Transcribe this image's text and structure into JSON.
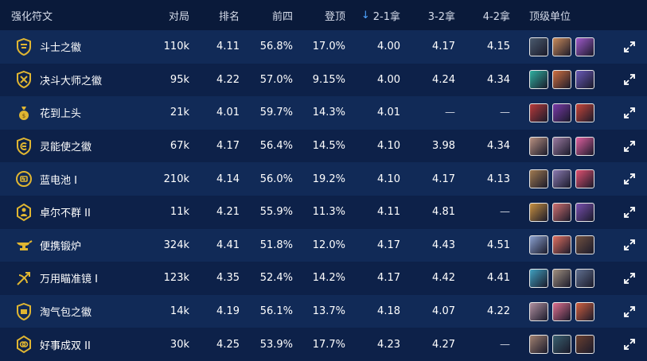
{
  "header": {
    "name": "强化符文",
    "games": "对局",
    "rank": "排名",
    "top4": "前四",
    "win": "登顶",
    "s21": "2-1拿",
    "s32": "3-2拿",
    "s42": "4-2拿",
    "units": "顶级单位"
  },
  "colors": {
    "background": "#0b1d3f",
    "row_odd": "#112a57",
    "row_even": "#0d2149",
    "gold_icon": "#e0b632",
    "sort_arrow": "#4da3ff"
  },
  "rows": [
    {
      "name": "斗士之徽",
      "icon": "shield-emblem-icon",
      "games": "110k",
      "rank": "4.11",
      "top4": "56.8%",
      "win": "17.0%",
      "s21": "4.00",
      "s32": "4.17",
      "s42": "4.15",
      "units": [
        "#4a5a6e",
        "#c98a5a",
        "#a05acb"
      ]
    },
    {
      "name": "决斗大师之徽",
      "icon": "crossed-swords-emblem-icon",
      "games": "95k",
      "rank": "4.22",
      "top4": "57.0%",
      "win": "9.15%",
      "s21": "4.00",
      "s32": "4.24",
      "s42": "4.34",
      "units": [
        "#2fb0a0",
        "#d07040",
        "#6a5ab8"
      ]
    },
    {
      "name": "花到上头",
      "icon": "money-bag-icon",
      "games": "21k",
      "rank": "4.01",
      "top4": "59.7%",
      "win": "14.3%",
      "s21": "4.01",
      "s32": "—",
      "s42": "—",
      "units": [
        "#b83a3a",
        "#7a3aa8",
        "#c8463a"
      ]
    },
    {
      "name": "灵能使之徽",
      "icon": "psionic-emblem-icon",
      "games": "67k",
      "rank": "4.17",
      "top4": "56.4%",
      "win": "14.5%",
      "s21": "4.10",
      "s32": "3.98",
      "s42": "4.34",
      "units": [
        "#b89080",
        "#9a7aa0",
        "#e060a0"
      ]
    },
    {
      "name": "蓝电池 I",
      "icon": "battery-icon",
      "games": "210k",
      "rank": "4.14",
      "top4": "56.0%",
      "win": "19.2%",
      "s21": "4.10",
      "s32": "4.17",
      "s42": "4.13",
      "units": [
        "#a07a50",
        "#8a7ab0",
        "#e05070"
      ]
    },
    {
      "name": "卓尔不群 II",
      "icon": "figure-badge-icon",
      "games": "11k",
      "rank": "4.21",
      "top4": "55.9%",
      "win": "11.3%",
      "s21": "4.11",
      "s32": "4.81",
      "s42": "—",
      "units": [
        "#c89040",
        "#d07070",
        "#7a50b0"
      ]
    },
    {
      "name": "便携锻炉",
      "icon": "anvil-icon",
      "games": "324k",
      "rank": "4.41",
      "top4": "51.8%",
      "win": "12.0%",
      "s21": "4.17",
      "s32": "4.43",
      "s42": "4.51",
      "units": [
        "#8aa0d0",
        "#e07060",
        "#705040"
      ]
    },
    {
      "name": "万用瞄准镜 I",
      "icon": "crossbow-icon",
      "games": "123k",
      "rank": "4.35",
      "top4": "52.4%",
      "win": "14.2%",
      "s21": "4.17",
      "s32": "4.42",
      "s42": "4.41",
      "units": [
        "#40a0c0",
        "#a09080",
        "#607090"
      ]
    },
    {
      "name": "淘气包之徽",
      "icon": "rascal-emblem-icon",
      "games": "14k",
      "rank": "4.19",
      "top4": "56.1%",
      "win": "13.7%",
      "s21": "4.18",
      "s32": "4.07",
      "s42": "4.22",
      "units": [
        "#b090a0",
        "#e07090",
        "#d06040"
      ]
    },
    {
      "name": "好事成双 II",
      "icon": "double-coin-icon",
      "games": "30k",
      "rank": "4.25",
      "top4": "53.9%",
      "win": "17.7%",
      "s21": "4.23",
      "s32": "4.27",
      "s42": "—",
      "units": [
        "#a08070",
        "#3a6070",
        "#6a4030"
      ]
    }
  ]
}
